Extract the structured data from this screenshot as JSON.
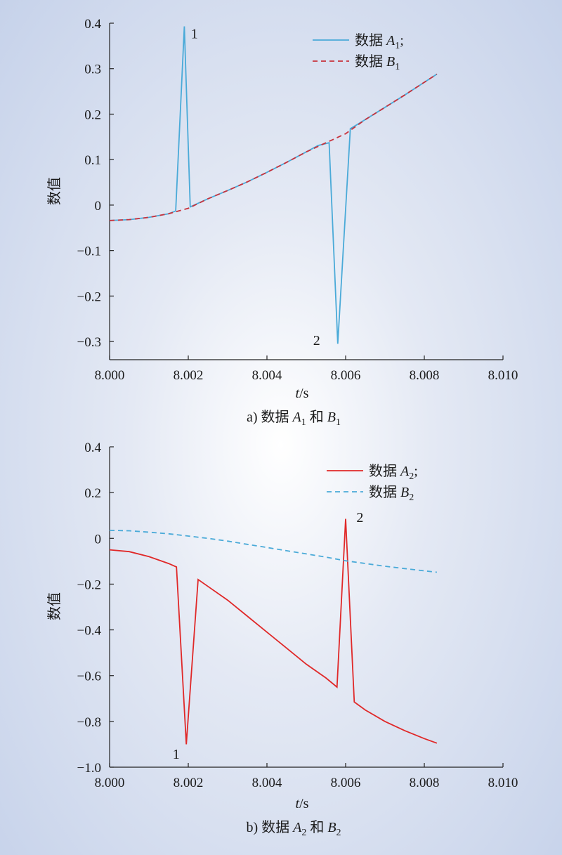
{
  "chart_data": [
    {
      "type": "line",
      "caption": "a) 数据 A1 和 B1",
      "caption_parts": {
        "prefix": "a) 数据 ",
        "a": "A",
        "a_sub": "1",
        "mid": " 和 ",
        "b": "B",
        "b_sub": "1"
      },
      "xlabel": "t/s",
      "xlabel_parts": {
        "var": "t",
        "unit": "/s"
      },
      "ylabel": "数值",
      "xlim": [
        8.0,
        8.01
      ],
      "ylim": [
        -0.34,
        0.4
      ],
      "xticks": [
        8.0,
        8.002,
        8.004,
        8.006,
        8.008,
        8.01
      ],
      "xtick_labels": [
        "8.000",
        "8.002",
        "8.004",
        "8.006",
        "8.008",
        "8.010"
      ],
      "yticks": [
        0.4,
        0.3,
        0.2,
        0.1,
        0,
        -0.1,
        -0.2,
        -0.3
      ],
      "ytick_labels": [
        "0.4",
        "0.3",
        "0.2",
        "0.1",
        "0",
        "−0.1",
        "−0.2",
        "−0.3"
      ],
      "legend_position": "top-right",
      "series": [
        {
          "name": "数据 A1;",
          "legend": {
            "prefix": "数据 ",
            "var": "A",
            "sub": "1",
            "suffix": ";"
          },
          "color": "#4aaad8",
          "dash": "solid",
          "x": [
            8.0,
            8.0005,
            8.001,
            8.0015,
            8.00168,
            8.0019,
            8.00205,
            8.0025,
            8.003,
            8.0035,
            8.004,
            8.0045,
            8.005,
            8.0053,
            8.00558,
            8.0058,
            8.00612,
            8.0065,
            8.007,
            8.0075,
            8.008,
            8.00832
          ],
          "y": [
            -0.034,
            -0.032,
            -0.027,
            -0.019,
            -0.013,
            0.393,
            -0.004,
            0.014,
            0.032,
            0.051,
            0.072,
            0.094,
            0.117,
            0.131,
            0.137,
            -0.305,
            0.168,
            0.188,
            0.215,
            0.242,
            0.27,
            0.288
          ]
        },
        {
          "name": "数据 B1",
          "legend": {
            "prefix": "数据 ",
            "var": "B",
            "sub": "1",
            "suffix": ""
          },
          "color": "#c8323c",
          "dash": "dashed",
          "x": [
            8.0,
            8.0005,
            8.001,
            8.0015,
            8.002,
            8.0025,
            8.003,
            8.0035,
            8.004,
            8.0045,
            8.005,
            8.0055,
            8.006,
            8.0065,
            8.007,
            8.0075,
            8.008,
            8.00832
          ],
          "y": [
            -0.034,
            -0.032,
            -0.027,
            -0.019,
            -0.007,
            0.014,
            0.032,
            0.051,
            0.072,
            0.094,
            0.117,
            0.137,
            0.157,
            0.188,
            0.215,
            0.242,
            0.27,
            0.288
          ]
        }
      ],
      "annotations": [
        {
          "text": "1",
          "x": 8.00205,
          "y": 0.385
        },
        {
          "text": "2",
          "x": 8.00562,
          "y": -0.298
        }
      ]
    },
    {
      "type": "line",
      "caption": "b) 数据 A2 和 B2",
      "caption_parts": {
        "prefix": "b) 数据 ",
        "a": "A",
        "a_sub": "2",
        "mid": " 和 ",
        "b": "B",
        "b_sub": "2"
      },
      "xlabel": "t/s",
      "xlabel_parts": {
        "var": "t",
        "unit": "/s"
      },
      "ylabel": "数值",
      "xlim": [
        8.0,
        8.01
      ],
      "ylim": [
        -1.0,
        0.4
      ],
      "xticks": [
        8.0,
        8.002,
        8.004,
        8.006,
        8.008,
        8.01
      ],
      "xtick_labels": [
        "8.000",
        "8.002",
        "8.004",
        "8.006",
        "8.008",
        "8.010"
      ],
      "yticks": [
        0.4,
        0.2,
        0,
        -0.2,
        -0.4,
        -0.6,
        -0.8,
        -1.0
      ],
      "ytick_labels": [
        "0.4",
        "0.2",
        "0",
        "−0.2",
        "−0.4",
        "−0.6",
        "−0.8",
        "−1.0"
      ],
      "legend_position": "top-right",
      "series": [
        {
          "name": "数据 A2;",
          "legend": {
            "prefix": "数据 ",
            "var": "A",
            "sub": "2",
            "suffix": ";"
          },
          "color": "#e02828",
          "dash": "solid",
          "x": [
            8.0,
            8.0005,
            8.001,
            8.0015,
            8.0017,
            8.00195,
            8.00225,
            8.0025,
            8.003,
            8.0035,
            8.004,
            8.0045,
            8.005,
            8.0055,
            8.00578,
            8.006,
            8.00622,
            8.0065,
            8.007,
            8.0075,
            8.008,
            8.00832
          ],
          "y": [
            -0.05,
            -0.058,
            -0.08,
            -0.11,
            -0.125,
            -0.9,
            -0.18,
            -0.21,
            -0.27,
            -0.34,
            -0.41,
            -0.48,
            -0.55,
            -0.61,
            -0.65,
            0.085,
            -0.715,
            -0.75,
            -0.8,
            -0.84,
            -0.875,
            -0.895
          ]
        },
        {
          "name": "数据 B2",
          "legend": {
            "prefix": "数据 ",
            "var": "B",
            "sub": "2",
            "suffix": ""
          },
          "color": "#4aaad8",
          "dash": "dashed",
          "x": [
            8.0,
            8.0005,
            8.001,
            8.0015,
            8.002,
            8.0025,
            8.003,
            8.0035,
            8.004,
            8.0045,
            8.005,
            8.0055,
            8.006,
            8.0065,
            8.007,
            8.0075,
            8.008,
            8.00832
          ],
          "y": [
            0.035,
            0.033,
            0.027,
            0.02,
            0.01,
            0.0,
            -0.012,
            -0.026,
            -0.04,
            -0.054,
            -0.068,
            -0.082,
            -0.098,
            -0.11,
            -0.122,
            -0.132,
            -0.142,
            -0.148
          ]
        }
      ],
      "annotations": [
        {
          "text": "1",
          "x": 8.0018,
          "y": -0.92
        },
        {
          "text": "2",
          "x": 8.00622,
          "y": 0.065
        }
      ]
    }
  ]
}
